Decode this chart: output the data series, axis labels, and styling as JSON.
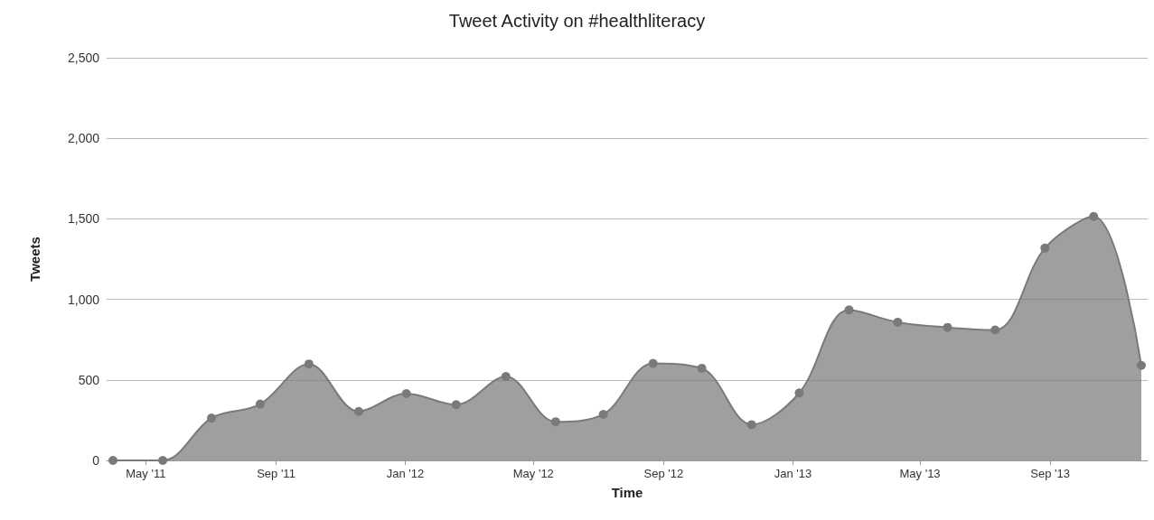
{
  "chart_data": {
    "type": "area",
    "title": "Tweet Activity on #healthliteracy",
    "xlabel": "Time",
    "ylabel": "Tweets",
    "x": [
      "2011-03-31",
      "2011-05-17",
      "2011-07-02",
      "2011-08-17",
      "2011-10-02",
      "2011-11-18",
      "2012-01-02",
      "2012-02-18",
      "2012-04-05",
      "2012-05-22",
      "2012-07-06",
      "2012-08-22",
      "2012-10-07",
      "2012-11-23",
      "2013-01-07",
      "2013-02-23",
      "2013-04-10",
      "2013-05-27",
      "2013-07-11",
      "2013-08-27",
      "2013-10-12",
      "2013-11-26"
    ],
    "series": [
      {
        "color": "#7a7a7a",
        "values": [
          0,
          0,
          263,
          350,
          599,
          304,
          415,
          346,
          521,
          240,
          286,
          602,
          572,
          222,
          419,
          934,
          858,
          826,
          810,
          1318,
          1515,
          590
        ]
      }
    ],
    "xlim": [
      "2011-03-25",
      "2013-12-02"
    ],
    "xticks": [
      {
        "value": "2011-05-01",
        "label": "May '11"
      },
      {
        "value": "2011-09-01",
        "label": "Sep '11"
      },
      {
        "value": "2012-01-01",
        "label": "Jan '12"
      },
      {
        "value": "2012-05-01",
        "label": "May '12"
      },
      {
        "value": "2012-09-01",
        "label": "Sep '12"
      },
      {
        "value": "2013-01-01",
        "label": "Jan '13"
      },
      {
        "value": "2013-05-01",
        "label": "May '13"
      },
      {
        "value": "2013-09-01",
        "label": "Sep '13"
      }
    ],
    "ylim": [
      0,
      2500
    ],
    "yticks": [
      0,
      {
        "value": 500,
        "label": "500"
      },
      {
        "value": 1000,
        "label": "1,000"
      },
      {
        "value": 1500,
        "label": "1,500"
      },
      {
        "value": 2000,
        "label": "2,000"
      },
      {
        "value": 2500,
        "label": "2,500"
      }
    ],
    "grid": "y",
    "marker": "circle"
  }
}
